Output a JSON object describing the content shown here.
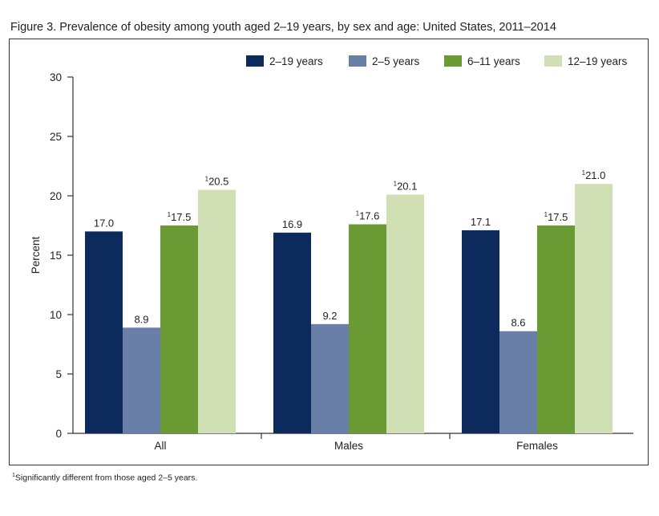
{
  "figure": {
    "title": "Figure 3. Prevalence of obesity among youth aged 2–19 years, by sex and age: United States, 2011–2014",
    "footnote_marker": "1",
    "footnote_text": "Significantly different from those aged 2–5 years."
  },
  "chart_data": {
    "type": "bar",
    "title": "Prevalence of obesity among youth aged 2–19 years, by sex and age: United States, 2011–2014",
    "xlabel": "",
    "ylabel": "Percent",
    "ylim": [
      0,
      30
    ],
    "yticks": [
      0,
      5,
      10,
      15,
      20,
      25,
      30
    ],
    "grid": false,
    "legend_position": "top-right",
    "categories": [
      "All",
      "Males",
      "Females"
    ],
    "series": [
      {
        "name": "2–19 years",
        "color": "#0d2a5c",
        "values": [
          17.0,
          16.9,
          17.1
        ],
        "labels": [
          "17.0",
          "16.9",
          "17.1"
        ],
        "significant": [
          false,
          false,
          false
        ]
      },
      {
        "name": "2–5 years",
        "color": "#6a7fa8",
        "values": [
          8.9,
          9.2,
          8.6
        ],
        "labels": [
          "8.9",
          "9.2",
          "8.6"
        ],
        "significant": [
          false,
          false,
          false
        ]
      },
      {
        "name": "6–11 years",
        "color": "#6a9a33",
        "values": [
          17.5,
          17.6,
          17.5
        ],
        "labels": [
          "17.5",
          "17.6",
          "17.5"
        ],
        "significant": [
          true,
          true,
          true
        ]
      },
      {
        "name": "12–19 years",
        "color": "#d0e0b4",
        "values": [
          20.5,
          20.1,
          21.0
        ],
        "labels": [
          "20.5",
          "20.1",
          "21.0"
        ],
        "significant": [
          true,
          true,
          true
        ]
      }
    ],
    "significance_marker": "1"
  }
}
